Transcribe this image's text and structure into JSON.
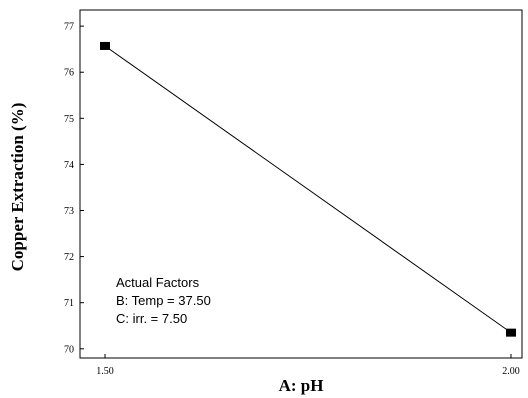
{
  "chart_data": {
    "type": "line",
    "xlabel": "A: pH",
    "ylabel": "Copper Extraction (%)",
    "x_ticks": [
      "1.50",
      "2.00"
    ],
    "y_ticks": [
      "70",
      "71",
      "72",
      "73",
      "74",
      "75",
      "76",
      "77"
    ],
    "xlim": [
      1.5,
      2.0
    ],
    "ylim": [
      69.8,
      77.35
    ],
    "grid": false,
    "series": [
      {
        "x": [
          1.5,
          2.0
        ],
        "y": [
          76.57,
          70.35
        ],
        "color": "#000000",
        "marker": "square"
      }
    ],
    "annotation": {
      "lines": [
        "Actual Factors",
        "B: Temp = 37.50",
        "C: irr. = 7.50"
      ]
    }
  }
}
